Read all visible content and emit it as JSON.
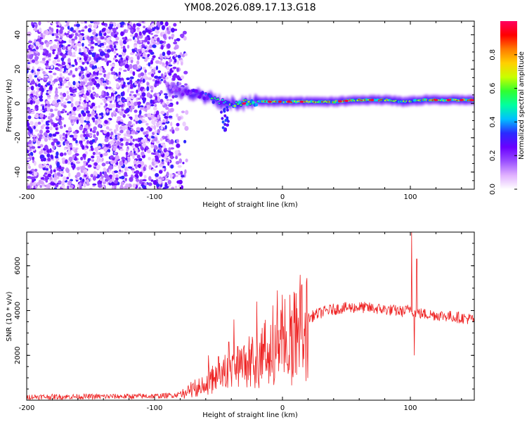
{
  "figure": {
    "title": "YM08.2026.089.17.13.G18"
  },
  "chart_data": [
    {
      "type": "heatmap",
      "name": "spectrogram",
      "xlabel": "Height of straight line (km)",
      "ylabel": "Frequency (Hz)",
      "xlim": [
        -200,
        150
      ],
      "ylim": [
        -50,
        48
      ],
      "xticks": [
        -200,
        -100,
        0,
        100
      ],
      "yticks": [
        -40,
        -20,
        0,
        20,
        40
      ],
      "colorbar": {
        "label": "Normalized spectral amplitude",
        "range": [
          0,
          1
        ],
        "ticks": [
          "0.0",
          "0.2",
          "0.4",
          "0.6",
          "0.8"
        ],
        "tick_values": [
          0.0,
          0.2,
          0.4,
          0.6,
          0.8
        ],
        "colormap_stops": [
          "#ffffff",
          "#e0b0ff",
          "#9a4fff",
          "#6a00ff",
          "#2a2aff",
          "#00c0ff",
          "#00ffa0",
          "#30ff30",
          "#c8ff00",
          "#ffd000",
          "#ff7a00",
          "#ff0000",
          "#ff0060"
        ]
      },
      "noise_region_x": [
        -200,
        -78
      ],
      "ridge": [
        {
          "x": -90,
          "f": 9,
          "a": 0.3
        },
        {
          "x": -80,
          "f": 7,
          "a": 0.35
        },
        {
          "x": -70,
          "f": 6,
          "a": 0.45
        },
        {
          "x": -60,
          "f": 4,
          "a": 0.5
        },
        {
          "x": -50,
          "f": 1,
          "a": 0.55
        },
        {
          "x": -40,
          "f": 0,
          "a": 0.6
        },
        {
          "x": -30,
          "f": 0,
          "a": 0.7
        },
        {
          "x": -20,
          "f": 1,
          "a": 0.75
        },
        {
          "x": -10,
          "f": 1,
          "a": 0.8
        },
        {
          "x": 0,
          "f": 1,
          "a": 0.85
        },
        {
          "x": 20,
          "f": 1,
          "a": 0.8
        },
        {
          "x": 40,
          "f": 1,
          "a": 0.85
        },
        {
          "x": 60,
          "f": 2,
          "a": 0.85
        },
        {
          "x": 80,
          "f": 2,
          "a": 0.85
        },
        {
          "x": 95,
          "f": 1,
          "a": 0.6
        },
        {
          "x": 110,
          "f": 2,
          "a": 0.8
        },
        {
          "x": 130,
          "f": 2,
          "a": 0.85
        },
        {
          "x": 150,
          "f": 2,
          "a": 0.9
        }
      ],
      "notes": "Broadband purple noise for x < -78 km; narrow-band signal near 0-2 Hz from -90 km onward, strongest from -20 km to 150 km"
    },
    {
      "type": "line",
      "name": "snr",
      "xlabel": "Height of straight line (km)",
      "ylabel": "SNR (10 * v/v)",
      "xlim": [
        -200,
        150
      ],
      "ylim": [
        0,
        7500
      ],
      "xticks": [
        -200,
        -100,
        0,
        100
      ],
      "yticks": [
        2000,
        4000,
        6000
      ],
      "series": [
        {
          "name": "SNR",
          "color": "#ee2222",
          "envelope_x": [
            -200,
            -150,
            -100,
            -85,
            -75,
            -65,
            -55,
            -45,
            -35,
            -25,
            -15,
            -5,
            5,
            15,
            25,
            35,
            45,
            60,
            80,
            95,
            100,
            102,
            105,
            110,
            130,
            150
          ],
          "envelope_y": [
            150,
            160,
            180,
            220,
            350,
            700,
            1000,
            1200,
            1400,
            1900,
            2300,
            2700,
            3050,
            3450,
            3800,
            4000,
            4100,
            4150,
            4050,
            3950,
            4100,
            4000,
            3900,
            3850,
            3750,
            3600
          ],
          "spikes": [
            {
              "x": -58,
              "y": 2000
            },
            {
              "x": -50,
              "y": 1950
            },
            {
              "x": -42,
              "y": 2600
            },
            {
              "x": -38,
              "y": 3600
            },
            {
              "x": -35,
              "y": 2400
            },
            {
              "x": -32,
              "y": 2300
            },
            {
              "x": -20,
              "y": 4400
            },
            {
              "x": -15,
              "y": 2500
            },
            {
              "x": -4,
              "y": 4900
            },
            {
              "x": 101,
              "y": 7500
            },
            {
              "x": 103,
              "y": 2000
            },
            {
              "x": 105,
              "y": 6300
            }
          ]
        }
      ]
    }
  ]
}
